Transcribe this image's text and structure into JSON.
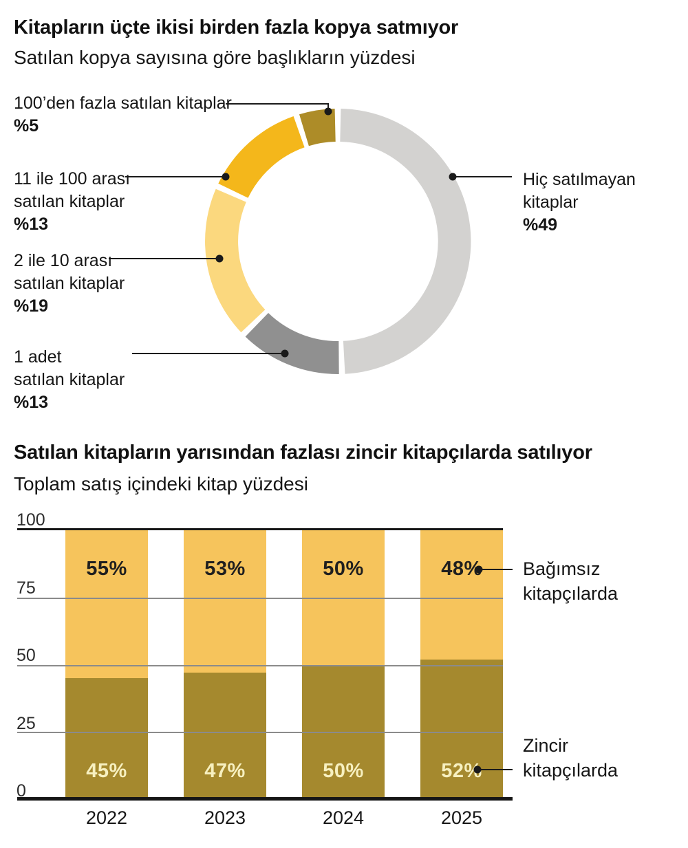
{
  "donut": {
    "title": "Kitapların üçte ikisi birden fazla kopya satmıyor",
    "subtitle": "Satılan kopya sayısına göre başlıkların yüzdesi",
    "labels": [
      {
        "lines": [
          "100’den fazla satılan kitaplar"
        ],
        "value": "%5"
      },
      {
        "lines": [
          "11 ile 100 arası",
          "satılan kitaplar"
        ],
        "value": "%13"
      },
      {
        "lines": [
          "2 ile 10 arası",
          "satılan kitaplar"
        ],
        "value": "%19"
      },
      {
        "lines": [
          "1 adet",
          "satılan kitaplar"
        ],
        "value": "%13"
      },
      {
        "lines": [
          "Hiç satılmayan",
          "kitaplar"
        ],
        "value": "%49"
      }
    ]
  },
  "bars": {
    "title": "Satılan kitapların yarısından fazlası zincir kitapçılarda satılıyor",
    "subtitle": "Toplam satış içindeki kitap yüzdesi",
    "legend": [
      {
        "lines": [
          "Bağımsız",
          "kitapçılarda"
        ]
      },
      {
        "lines": [
          "Zincir",
          "kitapçılarda"
        ]
      }
    ]
  },
  "colors": {
    "donut_unsold": "#d3d2d0",
    "donut_one": "#909090",
    "donut_2_10": "#fbd87e",
    "donut_11_100": "#f4b71b",
    "donut_100plus": "#ad8c28",
    "bar_independent": "#f6c45c",
    "bar_chain": "#a5892e",
    "gridline": "#8b8b8b",
    "axis": "#161616"
  },
  "chart_data": [
    {
      "type": "pie",
      "variant": "donut",
      "title": "Kitapların üçte ikisi birden fazla kopya satmıyor",
      "subtitle": "Satılan kopya sayısına göre başlıkların yüzdesi",
      "start_angle_deg": 0,
      "clockwise": true,
      "segments": [
        {
          "id": "hic-satilmayan",
          "label": "Hiç satılmayan kitaplar",
          "value": 49,
          "display": "%49",
          "color": "#d3d2d0"
        },
        {
          "id": "1-adet",
          "label": "1 adet satılan kitaplar",
          "value": 13,
          "display": "%13",
          "color": "#909090"
        },
        {
          "id": "2-10-arasi",
          "label": "2 ile 10 arası satılan kitaplar",
          "value": 19,
          "display": "%19",
          "color": "#fbd87e"
        },
        {
          "id": "11-100-arasi",
          "label": "11 ile 100 arası satılan kitaplar",
          "value": 13,
          "display": "%13",
          "color": "#f4b71b"
        },
        {
          "id": "100-fazla",
          "label": "100’den fazla satılan kitaplar",
          "value": 5,
          "display": "%5",
          "color": "#ad8c28"
        }
      ]
    },
    {
      "type": "bar",
      "variant": "stacked",
      "title": "Satılan kitapların yarısından fazlası zincir kitapçılarda satılıyor",
      "subtitle": "Toplam satış içindeki kitap yüzdesi",
      "categories": [
        "2022",
        "2023",
        "2024",
        "2025"
      ],
      "series": [
        {
          "name": "Zincir kitapçılarda",
          "color": "#a5892e",
          "values": [
            45,
            47,
            50,
            52
          ],
          "labels": [
            "45%",
            "47%",
            "50%",
            "52%"
          ]
        },
        {
          "name": "Bağımsız kitapçılarda",
          "color": "#f6c45c",
          "values": [
            55,
            53,
            50,
            48
          ],
          "labels": [
            "55%",
            "53%",
            "50%",
            "48%"
          ]
        }
      ],
      "ylim": [
        0,
        100
      ],
      "yticks": [
        0,
        25,
        50,
        75,
        100
      ],
      "grid": true,
      "legend_position": "right"
    }
  ]
}
